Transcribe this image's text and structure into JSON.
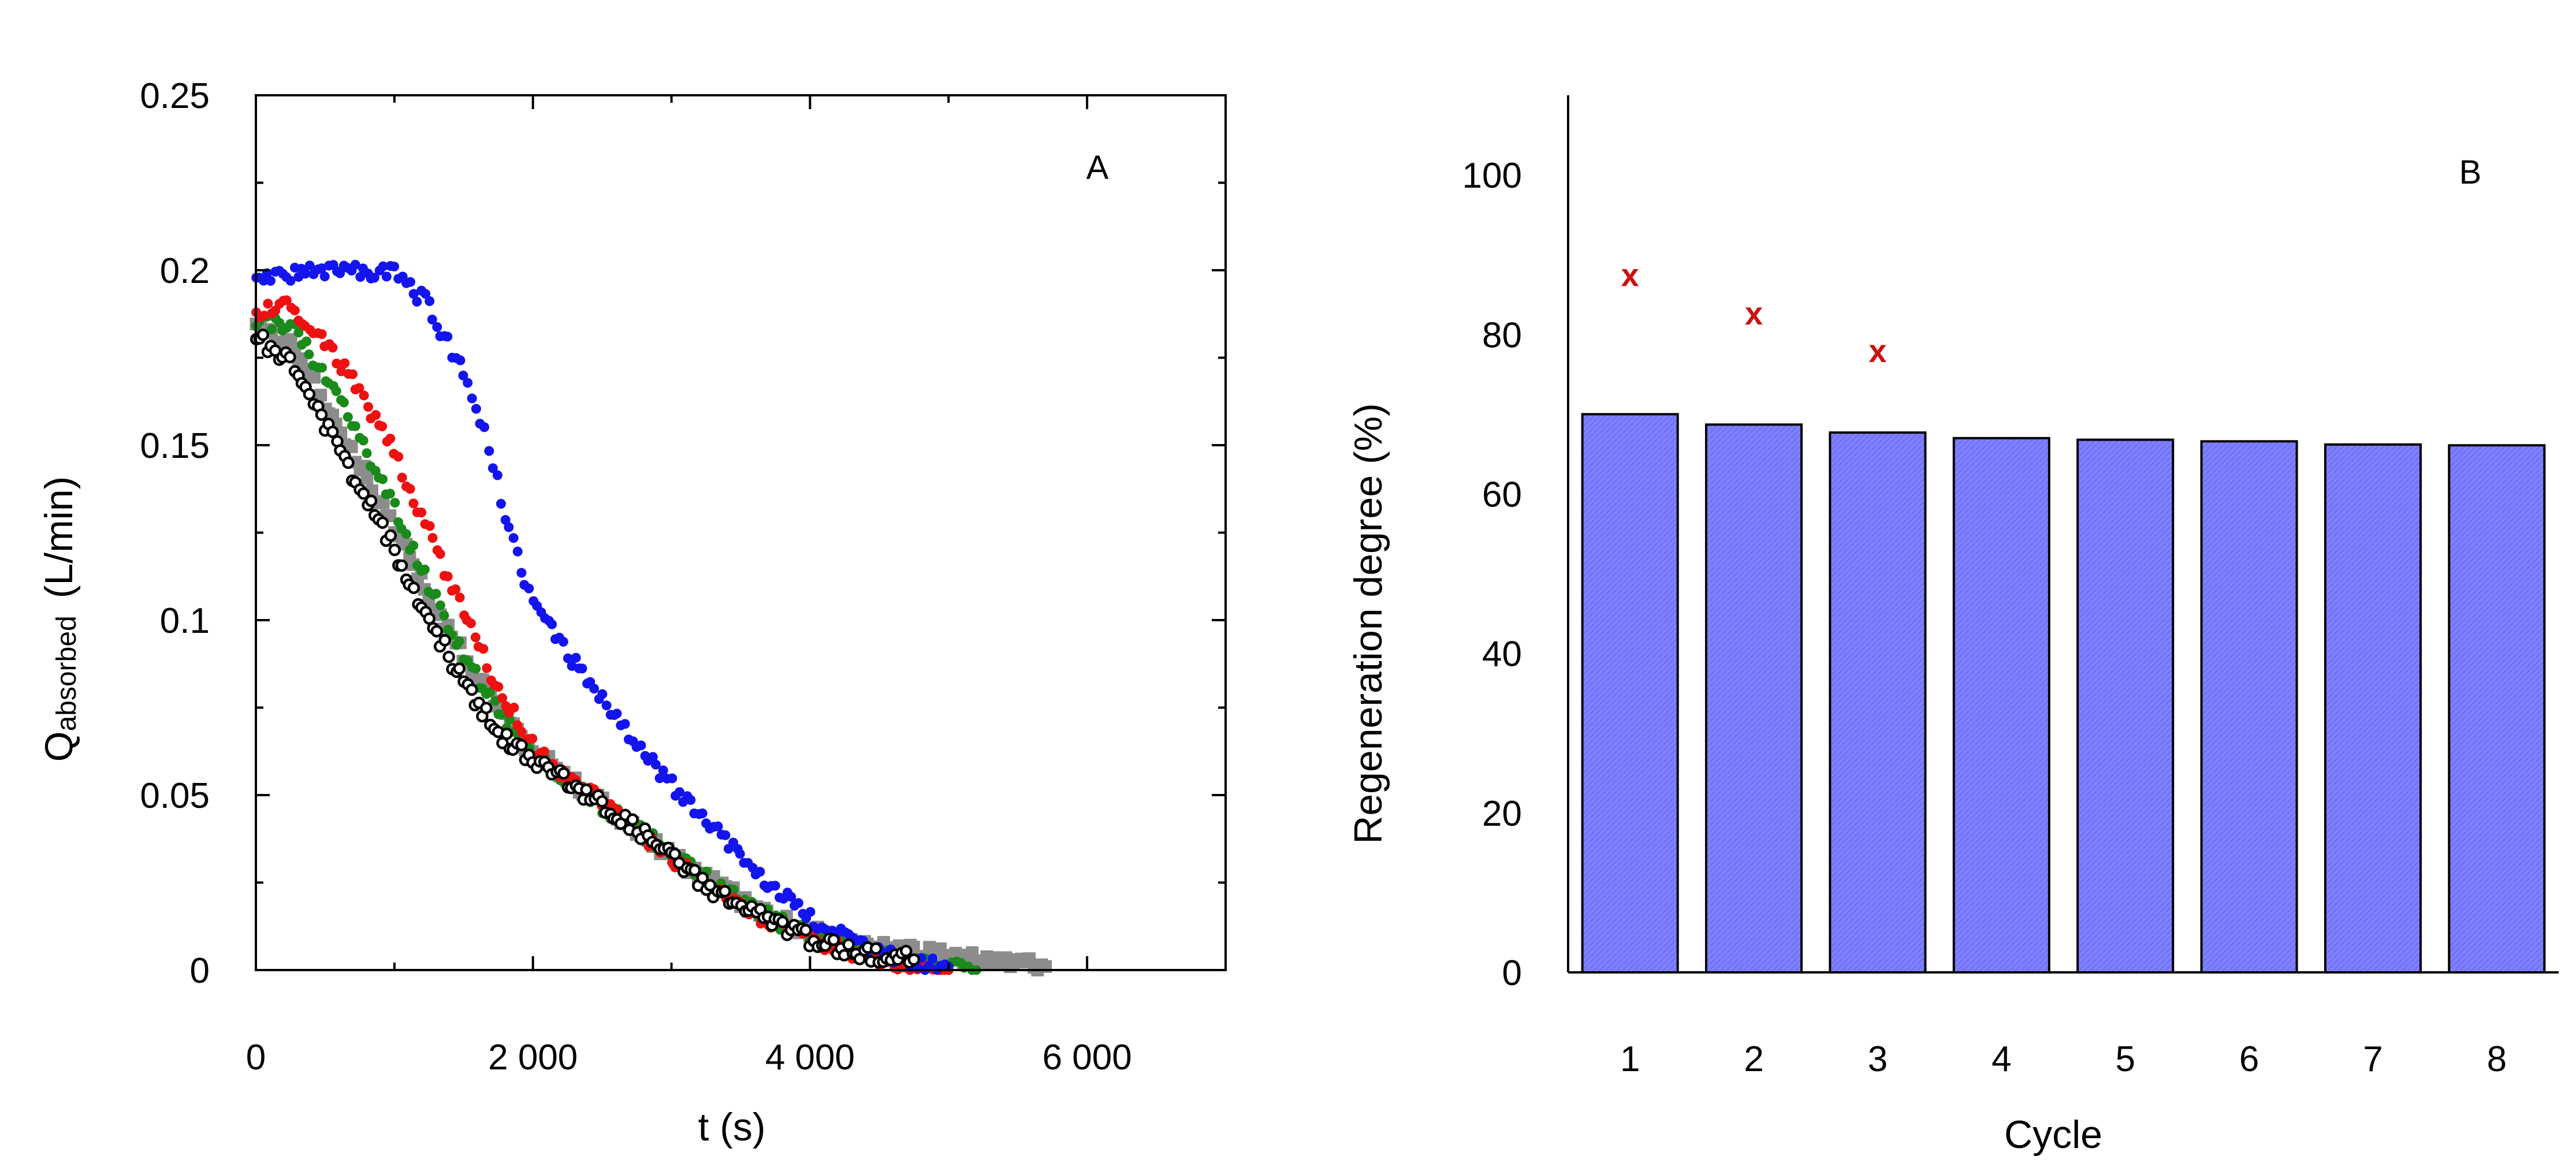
{
  "chart_data": [
    {
      "type": "scatter",
      "panel_label": "A",
      "xlabel": "t  (s)",
      "ylabel_main": "Q",
      "ylabel_sub": "absorbed",
      "ylabel_unit": "(L/min)",
      "xlim": [
        0,
        7000
      ],
      "ylim": [
        0,
        0.25
      ],
      "x_ticks": [
        0,
        2000,
        4000,
        6000
      ],
      "x_tick_labels": [
        "0",
        "2 000",
        "4 000",
        "6 000"
      ],
      "y_ticks": [
        0,
        0.05,
        0.1,
        0.15,
        0.2,
        0.25
      ],
      "y_tick_labels": [
        "0",
        "0.05",
        "0.1",
        "0.15",
        "0.2",
        "0.25"
      ],
      "series": [
        {
          "name": "series-grey",
          "color": "#8c8c8c",
          "marker": "square",
          "points": [
            [
              0,
              0.184
            ],
            [
              250,
              0.178
            ],
            [
              500,
              0.162
            ],
            [
              750,
              0.144
            ],
            [
              1000,
              0.126
            ],
            [
              1250,
              0.107
            ],
            [
              1500,
              0.09
            ],
            [
              1750,
              0.075
            ],
            [
              2000,
              0.062
            ],
            [
              2250,
              0.055
            ],
            [
              2500,
              0.048
            ],
            [
              2750,
              0.04
            ],
            [
              3000,
              0.033
            ],
            [
              3250,
              0.026
            ],
            [
              3500,
              0.02
            ],
            [
              3750,
              0.015
            ],
            [
              4000,
              0.011
            ],
            [
              4250,
              0.008
            ],
            [
              4500,
              0.006
            ],
            [
              4750,
              0.005
            ],
            [
              5000,
              0.004
            ],
            [
              5250,
              0.003
            ],
            [
              5500,
              0.002
            ],
            [
              5700,
              0.001
            ]
          ]
        },
        {
          "name": "series-green",
          "color": "#1a8a1a",
          "marker": "circle",
          "points": [
            [
              0,
              0.186
            ],
            [
              250,
              0.184
            ],
            [
              500,
              0.17
            ],
            [
              750,
              0.152
            ],
            [
              1000,
              0.132
            ],
            [
              1250,
              0.11
            ],
            [
              1500,
              0.09
            ],
            [
              1750,
              0.074
            ],
            [
              2000,
              0.062
            ],
            [
              2250,
              0.054
            ],
            [
              2500,
              0.047
            ],
            [
              2750,
              0.04
            ],
            [
              3000,
              0.033
            ],
            [
              3250,
              0.026
            ],
            [
              3500,
              0.02
            ],
            [
              3750,
              0.014
            ],
            [
              4000,
              0.01
            ],
            [
              4250,
              0.007
            ],
            [
              4500,
              0.004
            ],
            [
              4750,
              0.002
            ],
            [
              5000,
              0.001
            ],
            [
              5200,
              0.0
            ]
          ]
        },
        {
          "name": "series-red",
          "color": "#ee1111",
          "marker": "circle",
          "points": [
            [
              0,
              0.188
            ],
            [
              250,
              0.19
            ],
            [
              500,
              0.18
            ],
            [
              750,
              0.165
            ],
            [
              1000,
              0.148
            ],
            [
              1250,
              0.125
            ],
            [
              1500,
              0.102
            ],
            [
              1750,
              0.08
            ],
            [
              2000,
              0.064
            ],
            [
              2250,
              0.055
            ],
            [
              2500,
              0.048
            ],
            [
              2750,
              0.04
            ],
            [
              3000,
              0.032
            ],
            [
              3250,
              0.025
            ],
            [
              3500,
              0.018
            ],
            [
              3750,
              0.013
            ],
            [
              4000,
              0.009
            ],
            [
              4250,
              0.006
            ],
            [
              4500,
              0.003
            ],
            [
              4750,
              0.001
            ],
            [
              5000,
              0.0
            ]
          ]
        },
        {
          "name": "series-blue",
          "color": "#1414ee",
          "marker": "circle",
          "points": [
            [
              0,
              0.196
            ],
            [
              250,
              0.199
            ],
            [
              500,
              0.2
            ],
            [
              750,
              0.2
            ],
            [
              1000,
              0.199
            ],
            [
              1250,
              0.19
            ],
            [
              1500,
              0.17
            ],
            [
              1650,
              0.155
            ],
            [
              1800,
              0.13
            ],
            [
              2000,
              0.105
            ],
            [
              2250,
              0.09
            ],
            [
              2500,
              0.077
            ],
            [
              2750,
              0.064
            ],
            [
              3000,
              0.053
            ],
            [
              3250,
              0.043
            ],
            [
              3500,
              0.033
            ],
            [
              3750,
              0.023
            ],
            [
              4000,
              0.015
            ],
            [
              4250,
              0.009
            ],
            [
              4500,
              0.005
            ],
            [
              4750,
              0.002
            ],
            [
              5000,
              0.001
            ]
          ]
        },
        {
          "name": "series-black-open",
          "color": "#000000",
          "marker": "open-circle",
          "points": [
            [
              0,
              0.181
            ],
            [
              250,
              0.174
            ],
            [
              500,
              0.156
            ],
            [
              750,
              0.138
            ],
            [
              1000,
              0.12
            ],
            [
              1250,
              0.1
            ],
            [
              1500,
              0.082
            ],
            [
              1750,
              0.068
            ],
            [
              2000,
              0.06
            ],
            [
              2250,
              0.054
            ],
            [
              2500,
              0.047
            ],
            [
              2750,
              0.04
            ],
            [
              3000,
              0.032
            ],
            [
              3250,
              0.024
            ],
            [
              3500,
              0.018
            ],
            [
              3750,
              0.013
            ],
            [
              4000,
              0.009
            ],
            [
              4250,
              0.006
            ],
            [
              4500,
              0.004
            ],
            [
              4750,
              0.003
            ]
          ]
        }
      ]
    },
    {
      "type": "bar",
      "panel_label": "B",
      "xlabel": "Cycle",
      "ylabel": "Regeneration degree  (%)",
      "ylim": [
        0,
        110
      ],
      "y_ticks": [
        0,
        20,
        40,
        60,
        80,
        100
      ],
      "y_tick_labels": [
        "0",
        "20",
        "40",
        "60",
        "80",
        "100"
      ],
      "categories": [
        "1",
        "2",
        "3",
        "4",
        "5",
        "6",
        "7",
        "8"
      ],
      "values": [
        70,
        68.7,
        67.7,
        67,
        66.8,
        66.6,
        66.2,
        66.1
      ],
      "bar_color": "#8080ff",
      "markers": {
        "symbol": "x",
        "color": "#cc1111",
        "categories": [
          "1",
          "2",
          "3"
        ],
        "values": [
          87.5,
          82.7,
          78
        ]
      }
    }
  ]
}
